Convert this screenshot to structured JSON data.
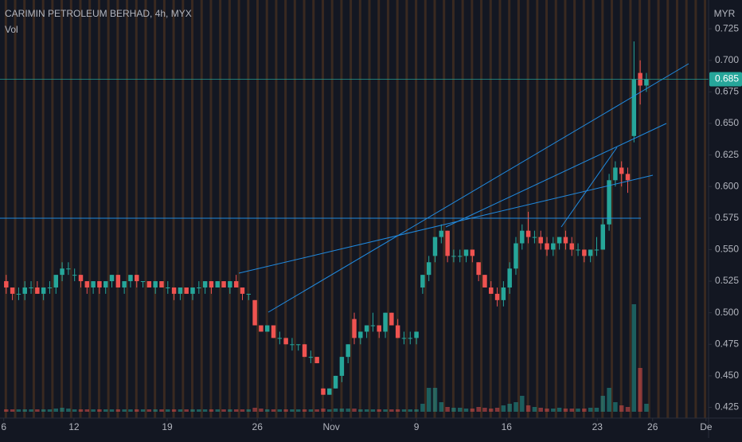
{
  "chart_data": {
    "type": "candlestick",
    "title": "CARIMIN PETROLEUM BERHAD, 4h, MYX",
    "volume_label": "Vol",
    "currency": "MYR",
    "up_color": "#26a69a",
    "down_color": "#ef5350",
    "last_price": 0.685,
    "ylim": [
      0.4165,
      0.7478
    ],
    "yticks": [
      {
        "value": 0.425,
        "label": "0.425"
      },
      {
        "value": 0.45,
        "label": "0.450"
      },
      0.475,
      {
        "value": 0.5,
        "label": "0.500"
      },
      0.525,
      {
        "value": 0.55,
        "label": "0.550"
      },
      0.575,
      {
        "value": 0.6,
        "label": "0.600"
      },
      0.625,
      {
        "value": 0.65,
        "label": "0.650"
      },
      0.675,
      {
        "value": 0.7,
        "label": "0.700"
      },
      0.725
    ],
    "xlim": [
      -1,
      113
    ],
    "xticks": [
      {
        "value": -0.4,
        "label": "6"
      },
      {
        "value": 10.9,
        "label": "12"
      },
      {
        "value": 25.9,
        "label": "19"
      },
      {
        "value": 40.4,
        "label": "26"
      },
      {
        "value": 52.3,
        "label": "Nov"
      },
      {
        "value": 66,
        "label": "9"
      },
      {
        "value": 80.5,
        "label": "16"
      },
      {
        "value": 95.1,
        "label": "23"
      },
      {
        "value": 104,
        "label": "26"
      },
      {
        "value": 112.6,
        "label": "De"
      }
    ],
    "candles": [
      [
        0.525,
        0.53,
        0.515,
        0.52
      ],
      [
        0.52,
        0.52,
        0.51,
        0.515
      ],
      [
        0.515,
        0.52,
        0.51,
        0.515
      ],
      [
        0.515,
        0.525,
        0.51,
        0.52
      ],
      [
        0.52,
        0.525,
        0.515,
        0.52
      ],
      [
        0.52,
        0.525,
        0.515,
        0.515
      ],
      [
        0.515,
        0.52,
        0.51,
        0.52
      ],
      [
        0.52,
        0.525,
        0.515,
        0.52
      ],
      [
        0.52,
        0.53,
        0.515,
        0.53
      ],
      [
        0.53,
        0.54,
        0.525,
        0.535
      ],
      [
        0.535,
        0.54,
        0.53,
        0.535
      ],
      [
        0.53,
        0.535,
        0.525,
        0.53
      ],
      [
        0.53,
        0.53,
        0.52,
        0.525
      ],
      [
        0.525,
        0.525,
        0.515,
        0.52
      ],
      [
        0.52,
        0.525,
        0.515,
        0.525
      ],
      [
        0.525,
        0.525,
        0.515,
        0.52
      ],
      [
        0.52,
        0.525,
        0.515,
        0.525
      ],
      [
        0.525,
        0.53,
        0.52,
        0.53
      ],
      [
        0.53,
        0.53,
        0.52,
        0.52
      ],
      [
        0.52,
        0.525,
        0.515,
        0.525
      ],
      [
        0.525,
        0.53,
        0.52,
        0.53
      ],
      [
        0.53,
        0.53,
        0.52,
        0.525
      ],
      [
        0.525,
        0.525,
        0.52,
        0.525
      ],
      [
        0.525,
        0.525,
        0.52,
        0.52
      ],
      [
        0.52,
        0.525,
        0.515,
        0.525
      ],
      [
        0.525,
        0.525,
        0.52,
        0.52
      ],
      [
        0.52,
        0.525,
        0.515,
        0.52
      ],
      [
        0.52,
        0.52,
        0.51,
        0.515
      ],
      [
        0.515,
        0.52,
        0.51,
        0.52
      ],
      [
        0.52,
        0.52,
        0.515,
        0.515
      ],
      [
        0.515,
        0.52,
        0.51,
        0.52
      ],
      [
        0.52,
        0.525,
        0.515,
        0.52
      ],
      [
        0.52,
        0.525,
        0.515,
        0.525
      ],
      [
        0.525,
        0.525,
        0.515,
        0.52
      ],
      [
        0.52,
        0.525,
        0.52,
        0.525
      ],
      [
        0.525,
        0.525,
        0.52,
        0.52
      ],
      [
        0.52,
        0.525,
        0.515,
        0.525
      ],
      [
        0.525,
        0.53,
        0.52,
        0.52
      ],
      [
        0.52,
        0.52,
        0.51,
        0.515
      ],
      [
        0.515,
        0.515,
        0.51,
        0.515
      ],
      [
        0.51,
        0.51,
        0.49,
        0.49
      ],
      [
        0.49,
        0.49,
        0.485,
        0.485
      ],
      [
        0.485,
        0.49,
        0.485,
        0.49
      ],
      [
        0.49,
        0.49,
        0.48,
        0.48
      ],
      [
        0.48,
        0.485,
        0.475,
        0.48
      ],
      [
        0.48,
        0.48,
        0.475,
        0.475
      ],
      [
        0.475,
        0.48,
        0.47,
        0.475
      ],
      [
        0.475,
        0.475,
        0.47,
        0.475
      ],
      [
        0.475,
        0.475,
        0.465,
        0.465
      ],
      [
        0.465,
        0.47,
        0.46,
        0.465
      ],
      [
        0.465,
        0.465,
        0.46,
        0.46
      ],
      [
        0.44,
        0.44,
        0.435,
        0.435
      ],
      [
        0.435,
        0.44,
        0.435,
        0.44
      ],
      [
        0.44,
        0.45,
        0.44,
        0.45
      ],
      [
        0.45,
        0.465,
        0.445,
        0.465
      ],
      [
        0.465,
        0.475,
        0.46,
        0.475
      ],
      [
        0.495,
        0.5,
        0.475,
        0.48
      ],
      [
        0.48,
        0.485,
        0.475,
        0.485
      ],
      [
        0.485,
        0.49,
        0.48,
        0.49
      ],
      [
        0.49,
        0.5,
        0.485,
        0.49
      ],
      [
        0.49,
        0.49,
        0.48,
        0.485
      ],
      [
        0.485,
        0.5,
        0.48,
        0.5
      ],
      [
        0.5,
        0.5,
        0.49,
        0.49
      ],
      [
        0.49,
        0.495,
        0.48,
        0.48
      ],
      [
        0.48,
        0.485,
        0.475,
        0.48
      ],
      [
        0.48,
        0.485,
        0.475,
        0.48
      ],
      [
        0.48,
        0.485,
        0.475,
        0.485
      ],
      [
        0.52,
        0.53,
        0.515,
        0.53
      ],
      [
        0.53,
        0.545,
        0.525,
        0.54
      ],
      [
        0.545,
        0.56,
        0.54,
        0.56
      ],
      [
        0.56,
        0.57,
        0.555,
        0.565
      ],
      [
        0.565,
        0.565,
        0.54,
        0.545
      ],
      [
        0.545,
        0.55,
        0.54,
        0.545
      ],
      [
        0.545,
        0.55,
        0.54,
        0.545
      ],
      [
        0.545,
        0.55,
        0.54,
        0.55
      ],
      [
        0.55,
        0.55,
        0.54,
        0.545
      ],
      [
        0.54,
        0.54,
        0.525,
        0.53
      ],
      [
        0.53,
        0.53,
        0.52,
        0.52
      ],
      [
        0.52,
        0.525,
        0.515,
        0.515
      ],
      [
        0.515,
        0.52,
        0.505,
        0.51
      ],
      [
        0.51,
        0.525,
        0.505,
        0.52
      ],
      [
        0.52,
        0.54,
        0.515,
        0.535
      ],
      [
        0.535,
        0.56,
        0.53,
        0.555
      ],
      [
        0.555,
        0.57,
        0.55,
        0.565
      ],
      [
        0.565,
        0.58,
        0.555,
        0.56
      ],
      [
        0.56,
        0.565,
        0.555,
        0.56
      ],
      [
        0.56,
        0.565,
        0.55,
        0.555
      ],
      [
        0.555,
        0.56,
        0.545,
        0.55
      ],
      [
        0.55,
        0.56,
        0.545,
        0.555
      ],
      [
        0.555,
        0.56,
        0.55,
        0.56
      ],
      [
        0.56,
        0.565,
        0.55,
        0.555
      ],
      [
        0.555,
        0.56,
        0.545,
        0.55
      ],
      [
        0.55,
        0.555,
        0.545,
        0.55
      ],
      [
        0.55,
        0.55,
        0.54,
        0.545
      ],
      [
        0.545,
        0.55,
        0.54,
        0.55
      ],
      [
        0.55,
        0.56,
        0.545,
        0.55
      ],
      [
        0.55,
        0.575,
        0.55,
        0.57
      ],
      [
        0.57,
        0.61,
        0.565,
        0.605
      ],
      [
        0.605,
        0.62,
        0.6,
        0.615
      ],
      [
        0.615,
        0.62,
        0.6,
        0.61
      ],
      [
        0.61,
        0.615,
        0.595,
        0.605
      ],
      [
        0.64,
        0.715,
        0.635,
        0.685
      ],
      [
        0.69,
        0.7,
        0.665,
        0.68
      ],
      [
        0.68,
        0.69,
        0.675,
        0.685
      ]
    ],
    "volume": [
      3,
      3,
      3,
      3,
      3,
      3,
      3,
      3,
      4,
      5,
      4,
      3,
      3,
      3,
      3,
      3,
      3,
      3,
      3,
      3,
      3,
      3,
      3,
      3,
      3,
      3,
      3,
      3,
      3,
      3,
      3,
      3,
      3,
      3,
      3,
      3,
      3,
      3,
      3,
      3,
      5,
      4,
      3,
      3,
      3,
      3,
      3,
      3,
      3,
      3,
      3,
      4,
      3,
      4,
      4,
      4,
      4,
      3,
      3,
      3,
      3,
      3,
      3,
      3,
      3,
      3,
      3,
      10,
      30,
      30,
      12,
      6,
      5,
      5,
      4,
      4,
      6,
      5,
      4,
      5,
      8,
      10,
      12,
      20,
      8,
      6,
      5,
      4,
      4,
      5,
      4,
      4,
      4,
      4,
      5,
      5,
      20,
      30,
      12,
      8,
      6,
      135,
      55,
      10
    ]
  }
}
